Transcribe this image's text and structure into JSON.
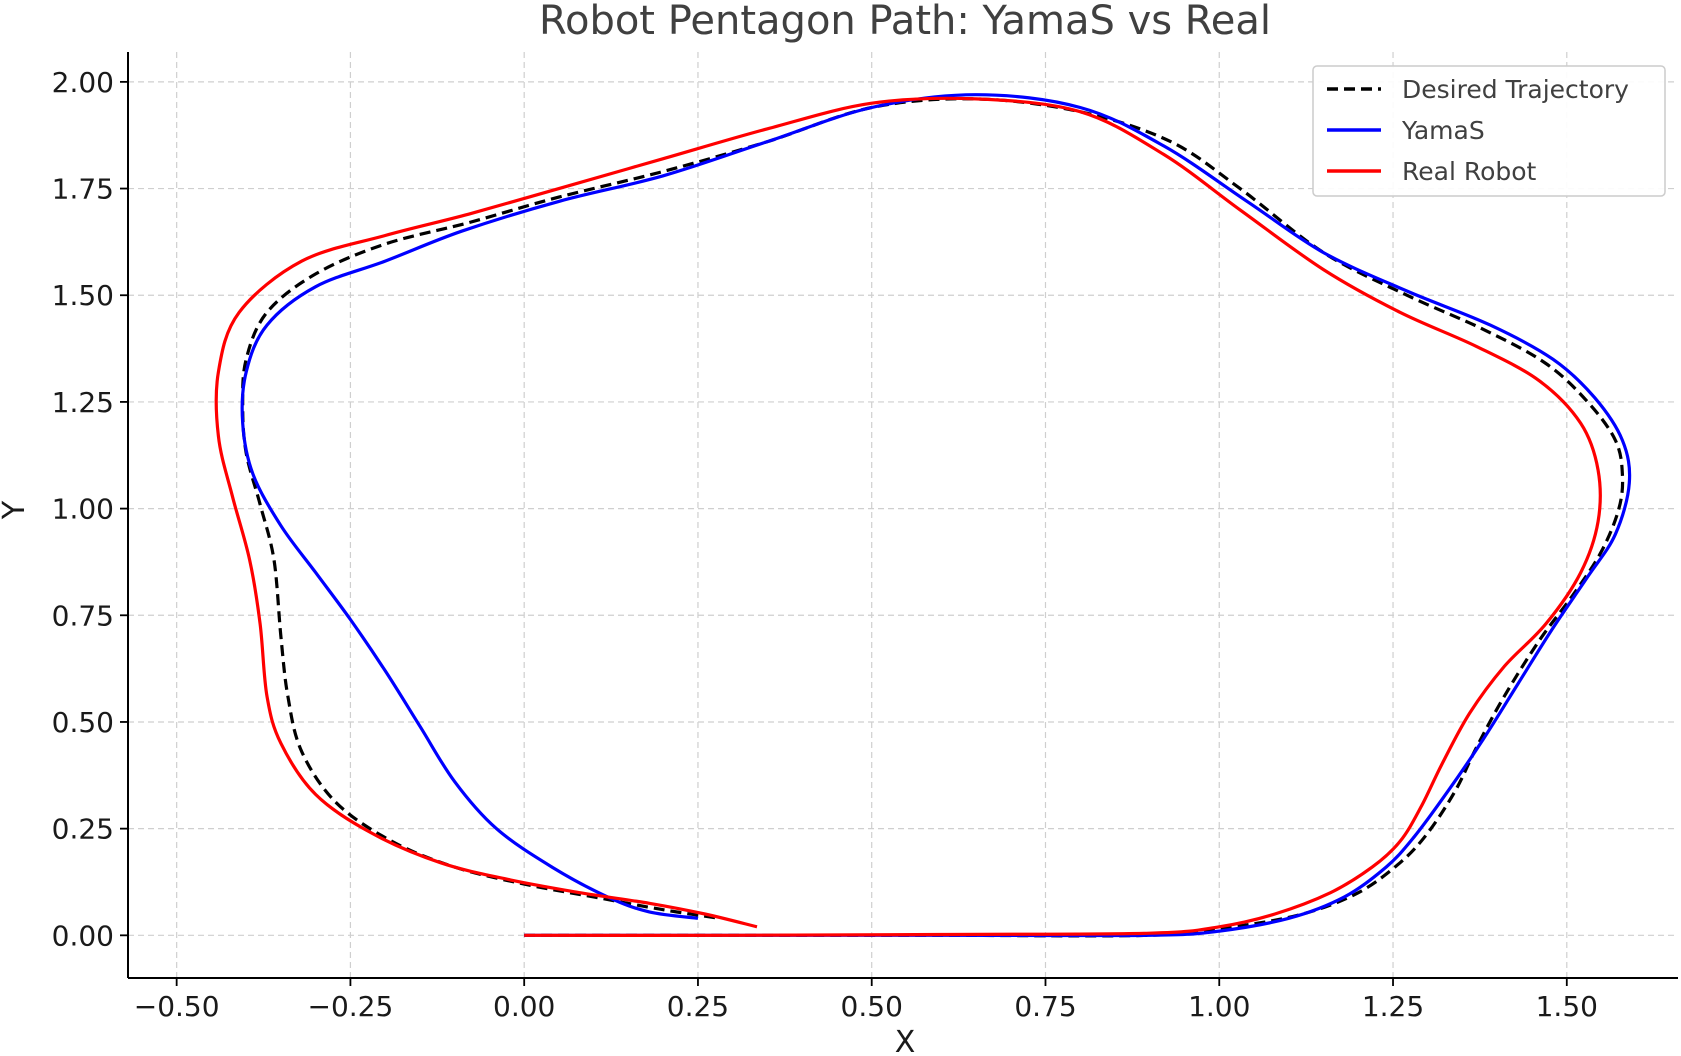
{
  "chart_data": {
    "type": "line",
    "title": "Robot Pentagon Path: YamaS vs Real",
    "xlabel": "X",
    "ylabel": "Y",
    "xlim": [
      -0.57,
      1.66
    ],
    "ylim": [
      -0.1,
      2.07
    ],
    "xticks": [
      -0.5,
      -0.25,
      0.0,
      0.25,
      0.5,
      0.75,
      1.0,
      1.25,
      1.5
    ],
    "xtick_labels": [
      "−0.50",
      "−0.25",
      "0.00",
      "0.25",
      "0.50",
      "0.75",
      "1.00",
      "1.25",
      "1.50"
    ],
    "yticks": [
      0.0,
      0.25,
      0.5,
      0.75,
      1.0,
      1.25,
      1.5,
      1.75,
      2.0
    ],
    "ytick_labels": [
      "0.00",
      "0.25",
      "0.50",
      "0.75",
      "1.00",
      "1.25",
      "1.50",
      "1.75",
      "2.00"
    ],
    "grid": true,
    "legend_position": "upper-right",
    "series": [
      {
        "name": "Desired Trajectory",
        "color": "#000000",
        "style": "dashed",
        "points": [
          [
            0.0,
            0.0
          ],
          [
            0.3,
            0.0
          ],
          [
            0.6,
            0.0
          ],
          [
            0.9,
            0.0
          ],
          [
            1.02,
            0.02
          ],
          [
            1.12,
            0.05
          ],
          [
            1.2,
            0.1
          ],
          [
            1.26,
            0.17
          ],
          [
            1.3,
            0.24
          ],
          [
            1.34,
            0.34
          ],
          [
            1.37,
            0.44
          ],
          [
            1.41,
            0.56
          ],
          [
            1.46,
            0.69
          ],
          [
            1.51,
            0.8
          ],
          [
            1.55,
            0.9
          ],
          [
            1.575,
            1.0
          ],
          [
            1.58,
            1.08
          ],
          [
            1.57,
            1.16
          ],
          [
            1.53,
            1.25
          ],
          [
            1.47,
            1.34
          ],
          [
            1.38,
            1.42
          ],
          [
            1.27,
            1.5
          ],
          [
            1.15,
            1.6
          ],
          [
            1.03,
            1.75
          ],
          [
            0.93,
            1.86
          ],
          [
            0.8,
            1.93
          ],
          [
            0.65,
            1.96
          ],
          [
            0.5,
            1.94
          ],
          [
            0.35,
            1.86
          ],
          [
            0.2,
            1.79
          ],
          [
            0.05,
            1.73
          ],
          [
            -0.08,
            1.67
          ],
          [
            -0.2,
            1.62
          ],
          [
            -0.3,
            1.55
          ],
          [
            -0.37,
            1.46
          ],
          [
            -0.4,
            1.35
          ],
          [
            -0.405,
            1.24
          ],
          [
            -0.4,
            1.13
          ],
          [
            -0.38,
            1.01
          ],
          [
            -0.36,
            0.88
          ],
          [
            -0.35,
            0.7
          ],
          [
            -0.34,
            0.56
          ],
          [
            -0.32,
            0.43
          ],
          [
            -0.27,
            0.31
          ],
          [
            -0.19,
            0.22
          ],
          [
            -0.1,
            0.16
          ],
          [
            0.0,
            0.12
          ],
          [
            0.1,
            0.09
          ],
          [
            0.2,
            0.06
          ],
          [
            0.28,
            0.04
          ]
        ]
      },
      {
        "name": "YamaS",
        "color": "#0000ff",
        "style": "solid",
        "points": [
          [
            0.0,
            0.0
          ],
          [
            0.3,
            0.0
          ],
          [
            0.6,
            0.0
          ],
          [
            0.9,
            0.0
          ],
          [
            1.0,
            0.01
          ],
          [
            1.1,
            0.04
          ],
          [
            1.18,
            0.09
          ],
          [
            1.24,
            0.16
          ],
          [
            1.28,
            0.23
          ],
          [
            1.33,
            0.34
          ],
          [
            1.38,
            0.46
          ],
          [
            1.43,
            0.59
          ],
          [
            1.48,
            0.72
          ],
          [
            1.53,
            0.84
          ],
          [
            1.57,
            0.94
          ],
          [
            1.59,
            1.06
          ],
          [
            1.58,
            1.16
          ],
          [
            1.54,
            1.26
          ],
          [
            1.48,
            1.35
          ],
          [
            1.39,
            1.43
          ],
          [
            1.27,
            1.51
          ],
          [
            1.15,
            1.6
          ],
          [
            1.04,
            1.72
          ],
          [
            0.92,
            1.85
          ],
          [
            0.8,
            1.94
          ],
          [
            0.65,
            1.97
          ],
          [
            0.5,
            1.94
          ],
          [
            0.35,
            1.86
          ],
          [
            0.2,
            1.78
          ],
          [
            0.05,
            1.72
          ],
          [
            -0.09,
            1.65
          ],
          [
            -0.2,
            1.58
          ],
          [
            -0.3,
            1.52
          ],
          [
            -0.37,
            1.43
          ],
          [
            -0.4,
            1.32
          ],
          [
            -0.405,
            1.2
          ],
          [
            -0.39,
            1.08
          ],
          [
            -0.35,
            0.96
          ],
          [
            -0.3,
            0.85
          ],
          [
            -0.25,
            0.74
          ],
          [
            -0.2,
            0.62
          ],
          [
            -0.15,
            0.49
          ],
          [
            -0.1,
            0.36
          ],
          [
            -0.04,
            0.25
          ],
          [
            0.04,
            0.16
          ],
          [
            0.12,
            0.09
          ],
          [
            0.18,
            0.055
          ],
          [
            0.25,
            0.04
          ]
        ]
      },
      {
        "name": "Real Robot",
        "color": "#ff0000",
        "style": "solid",
        "points": [
          [
            0.0,
            0.0
          ],
          [
            0.3,
            0.0
          ],
          [
            0.6,
            0.002
          ],
          [
            0.9,
            0.005
          ],
          [
            1.0,
            0.02
          ],
          [
            1.08,
            0.05
          ],
          [
            1.16,
            0.1
          ],
          [
            1.22,
            0.16
          ],
          [
            1.26,
            0.22
          ],
          [
            1.29,
            0.3
          ],
          [
            1.32,
            0.4
          ],
          [
            1.36,
            0.52
          ],
          [
            1.41,
            0.63
          ],
          [
            1.47,
            0.73
          ],
          [
            1.52,
            0.85
          ],
          [
            1.545,
            0.97
          ],
          [
            1.545,
            1.09
          ],
          [
            1.52,
            1.2
          ],
          [
            1.46,
            1.3
          ],
          [
            1.37,
            1.38
          ],
          [
            1.26,
            1.46
          ],
          [
            1.15,
            1.56
          ],
          [
            1.03,
            1.7
          ],
          [
            0.92,
            1.83
          ],
          [
            0.8,
            1.93
          ],
          [
            0.65,
            1.96
          ],
          [
            0.5,
            1.95
          ],
          [
            0.35,
            1.89
          ],
          [
            0.2,
            1.82
          ],
          [
            0.05,
            1.75
          ],
          [
            -0.08,
            1.69
          ],
          [
            -0.2,
            1.64
          ],
          [
            -0.32,
            1.58
          ],
          [
            -0.41,
            1.46
          ],
          [
            -0.44,
            1.32
          ],
          [
            -0.44,
            1.17
          ],
          [
            -0.42,
            1.03
          ],
          [
            -0.395,
            0.88
          ],
          [
            -0.38,
            0.73
          ],
          [
            -0.37,
            0.56
          ],
          [
            -0.35,
            0.45
          ],
          [
            -0.3,
            0.33
          ],
          [
            -0.22,
            0.24
          ],
          [
            -0.12,
            0.17
          ],
          [
            -0.02,
            0.13
          ],
          [
            0.08,
            0.1
          ],
          [
            0.18,
            0.075
          ],
          [
            0.26,
            0.05
          ],
          [
            0.335,
            0.02
          ]
        ]
      }
    ]
  }
}
